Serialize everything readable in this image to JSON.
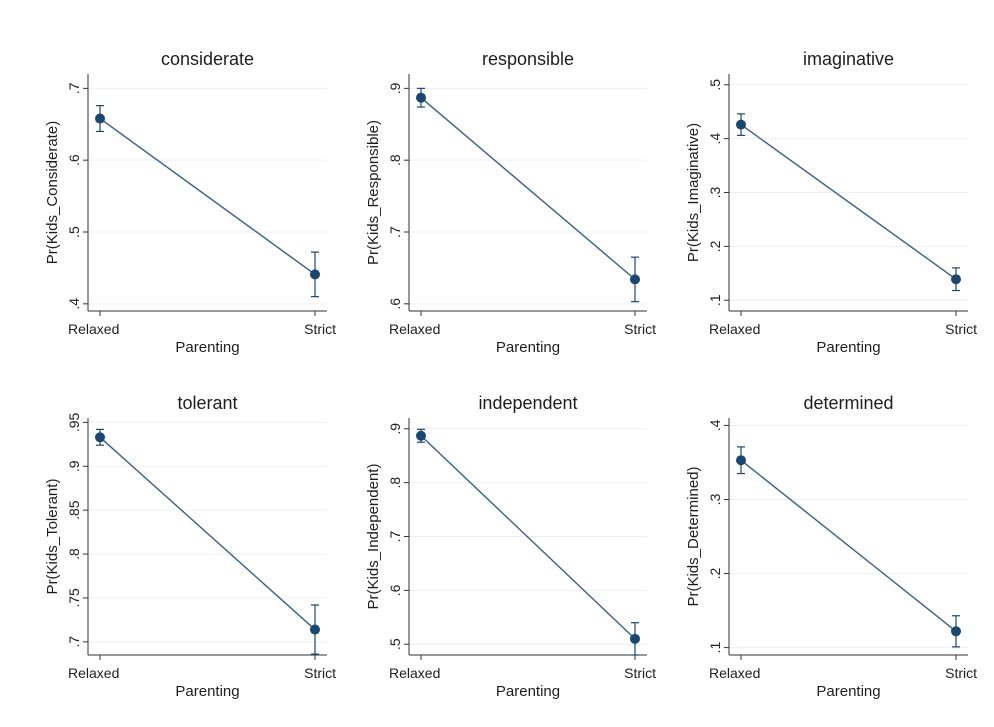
{
  "chart_data": [
    {
      "type": "line",
      "title": "considerate",
      "xlabel": "Parenting",
      "ylabel": "Pr(Kids_Considerate)",
      "categories": [
        "Relaxed",
        "Strict"
      ],
      "y_ticks": [
        0.4,
        0.5,
        0.6,
        0.7
      ],
      "y_tick_labels": [
        ".4",
        ".5",
        ".6",
        ".7"
      ],
      "ylim": [
        0.39,
        0.72
      ],
      "series": [
        {
          "values": [
            0.658,
            0.441
          ],
          "ci_low": [
            0.64,
            0.41
          ],
          "ci_high": [
            0.676,
            0.472
          ]
        }
      ],
      "grid": true,
      "color": "#1a476f"
    },
    {
      "type": "line",
      "title": "responsible",
      "xlabel": "Parenting",
      "ylabel": "Pr(Kids_Responsible)",
      "categories": [
        "Relaxed",
        "Strict"
      ],
      "y_ticks": [
        0.6,
        0.7,
        0.8,
        0.9
      ],
      "y_tick_labels": [
        ".6",
        ".7",
        ".8",
        ".9"
      ],
      "ylim": [
        0.59,
        0.92
      ],
      "series": [
        {
          "values": [
            0.887,
            0.634
          ],
          "ci_low": [
            0.874,
            0.603
          ],
          "ci_high": [
            0.9,
            0.665
          ]
        }
      ],
      "grid": true,
      "color": "#1a476f"
    },
    {
      "type": "line",
      "title": "imaginative",
      "xlabel": "Parenting",
      "ylabel": "Pr(Kids_Imaginative)",
      "categories": [
        "Relaxed",
        "Strict"
      ],
      "y_ticks": [
        0.1,
        0.2,
        0.3,
        0.4,
        0.5
      ],
      "y_tick_labels": [
        ".1",
        ".2",
        ".3",
        ".4",
        ".5"
      ],
      "ylim": [
        0.08,
        0.52
      ],
      "series": [
        {
          "values": [
            0.426,
            0.139
          ],
          "ci_low": [
            0.406,
            0.118
          ],
          "ci_high": [
            0.446,
            0.16
          ]
        }
      ],
      "grid": true,
      "color": "#1a476f"
    },
    {
      "type": "line",
      "title": "tolerant",
      "xlabel": "Parenting",
      "ylabel": "Pr(Kids_Tolerant)",
      "categories": [
        "Relaxed",
        "Strict"
      ],
      "y_ticks": [
        0.7,
        0.75,
        0.8,
        0.85,
        0.9,
        0.95
      ],
      "y_tick_labels": [
        ".7",
        ".75",
        ".8",
        ".85",
        ".9",
        ".95"
      ],
      "ylim": [
        0.685,
        0.955
      ],
      "series": [
        {
          "values": [
            0.933,
            0.714
          ],
          "ci_low": [
            0.924,
            0.686
          ],
          "ci_high": [
            0.942,
            0.742
          ]
        }
      ],
      "grid": true,
      "color": "#1a476f"
    },
    {
      "type": "line",
      "title": "independent",
      "xlabel": "Parenting",
      "ylabel": "Pr(Kids_Independent)",
      "categories": [
        "Relaxed",
        "Strict"
      ],
      "y_ticks": [
        0.5,
        0.6,
        0.7,
        0.8,
        0.9
      ],
      "y_tick_labels": [
        ".5",
        ".6",
        ".7",
        ".8",
        ".9"
      ],
      "ylim": [
        0.48,
        0.92
      ],
      "series": [
        {
          "values": [
            0.887,
            0.51
          ],
          "ci_low": [
            0.875,
            0.48
          ],
          "ci_high": [
            0.899,
            0.54
          ]
        }
      ],
      "grid": true,
      "color": "#1a476f"
    },
    {
      "type": "line",
      "title": "determined",
      "xlabel": "Parenting",
      "ylabel": "Pr(Kids_Determined)",
      "categories": [
        "Relaxed",
        "Strict"
      ],
      "y_ticks": [
        0.1,
        0.2,
        0.3,
        0.4
      ],
      "y_tick_labels": [
        ".1",
        ".2",
        ".3",
        ".4"
      ],
      "ylim": [
        0.09,
        0.41
      ],
      "series": [
        {
          "values": [
            0.353,
            0.122
          ],
          "ci_low": [
            0.335,
            0.101
          ],
          "ci_high": [
            0.371,
            0.143
          ]
        }
      ],
      "grid": true,
      "color": "#1a476f"
    }
  ]
}
